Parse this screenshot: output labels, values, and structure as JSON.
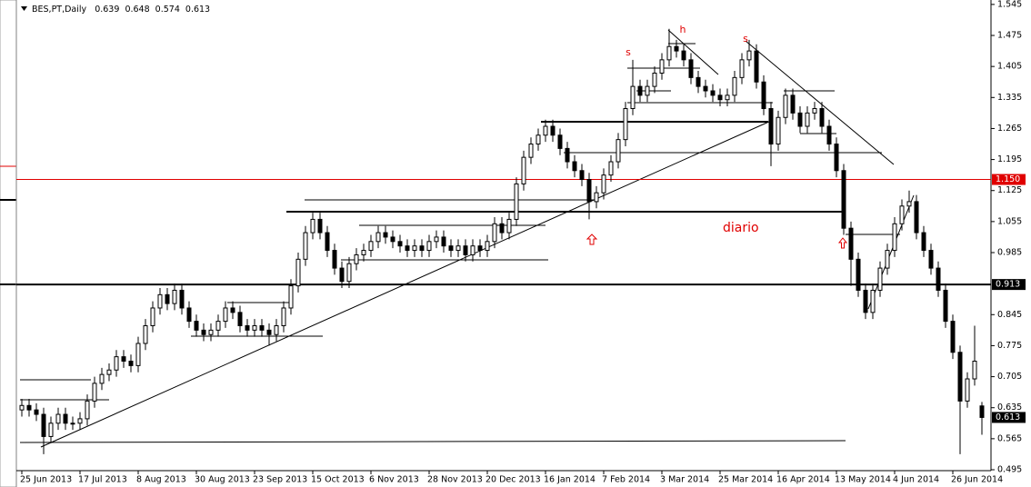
{
  "chart_data": {
    "type": "candlestick",
    "title": "BES,PT,Daily",
    "header_ohlc": [
      0.639,
      0.648,
      0.574,
      0.613
    ],
    "categories": [
      "25 Jun 2013",
      null,
      null,
      null,
      null,
      null,
      null,
      null,
      "17 Jul 2013",
      null,
      null,
      null,
      null,
      null,
      null,
      null,
      "8 Aug 2013",
      null,
      null,
      null,
      null,
      null,
      null,
      null,
      "30 Aug 2013",
      null,
      null,
      null,
      null,
      null,
      null,
      null,
      "23 Sep 2013",
      null,
      null,
      null,
      null,
      null,
      null,
      null,
      "15 Oct 2013",
      null,
      null,
      null,
      null,
      null,
      null,
      null,
      "6 Nov 2013",
      null,
      null,
      null,
      null,
      null,
      null,
      null,
      "28 Nov 2013",
      null,
      null,
      null,
      null,
      null,
      null,
      null,
      "20 Dec 2013",
      null,
      null,
      null,
      null,
      null,
      null,
      null,
      "16 Jan 2014",
      null,
      null,
      null,
      null,
      null,
      null,
      null,
      "7 Feb 2014",
      null,
      null,
      null,
      null,
      null,
      null,
      null,
      "3 Mar 2014",
      null,
      null,
      null,
      null,
      null,
      null,
      null,
      "25 Mar 2014",
      null,
      null,
      null,
      null,
      null,
      null,
      null,
      "16 Apr 2014",
      null,
      null,
      null,
      null,
      null,
      null,
      null,
      "13 May 2014",
      null,
      null,
      null,
      null,
      null,
      null,
      null,
      "4 Jun 2014",
      null,
      null,
      null,
      null,
      null,
      null,
      null,
      "26 Jun 2014",
      null,
      null,
      null,
      null
    ],
    "open": [
      0.63,
      0.64,
      0.63,
      0.62,
      0.57,
      0.6,
      0.62,
      0.6,
      0.6,
      0.61,
      0.65,
      0.69,
      0.71,
      0.72,
      0.75,
      0.74,
      0.73,
      0.78,
      0.82,
      0.86,
      0.89,
      0.87,
      0.9,
      0.86,
      0.83,
      0.81,
      0.8,
      0.81,
      0.83,
      0.86,
      0.85,
      0.82,
      0.81,
      0.82,
      0.81,
      0.8,
      0.82,
      0.86,
      0.91,
      0.97,
      1.03,
      1.06,
      1.03,
      0.99,
      0.95,
      0.92,
      0.96,
      0.98,
      0.99,
      1.01,
      1.03,
      1.02,
      1.01,
      1.0,
      0.99,
      1.0,
      0.99,
      1.01,
      1.02,
      1.0,
      0.99,
      1.0,
      0.98,
      1.0,
      0.99,
      1.01,
      1.05,
      1.03,
      1.06,
      1.14,
      1.2,
      1.23,
      1.25,
      1.27,
      1.25,
      1.22,
      1.19,
      1.17,
      1.15,
      1.1,
      1.12,
      1.16,
      1.19,
      1.24,
      1.31,
      1.36,
      1.34,
      1.36,
      1.39,
      1.42,
      1.45,
      1.44,
      1.42,
      1.38,
      1.36,
      1.35,
      1.34,
      1.33,
      1.34,
      1.38,
      1.42,
      1.44,
      1.37,
      1.31,
      1.23,
      1.29,
      1.34,
      1.3,
      1.27,
      1.3,
      1.31,
      1.27,
      1.23,
      1.17,
      1.04,
      0.97,
      0.9,
      0.85,
      0.9,
      0.95,
      0.99,
      1.05,
      1.09,
      1.1,
      1.03,
      0.99,
      0.95,
      0.9,
      0.83,
      0.76,
      0.65,
      0.7,
      0.639
    ],
    "high": [
      0.655,
      0.655,
      0.645,
      0.635,
      0.615,
      0.635,
      0.635,
      0.615,
      0.625,
      0.665,
      0.705,
      0.725,
      0.735,
      0.765,
      0.765,
      0.755,
      0.795,
      0.835,
      0.875,
      0.905,
      0.905,
      0.915,
      0.915,
      0.875,
      0.845,
      0.825,
      0.825,
      0.845,
      0.875,
      0.875,
      0.865,
      0.835,
      0.835,
      0.835,
      0.825,
      0.835,
      0.875,
      0.925,
      0.985,
      1.045,
      1.075,
      1.075,
      1.045,
      1.005,
      0.965,
      0.975,
      0.995,
      1.005,
      1.025,
      1.045,
      1.045,
      1.035,
      1.025,
      1.015,
      1.015,
      1.015,
      1.025,
      1.035,
      1.035,
      1.015,
      1.015,
      1.015,
      1.015,
      1.015,
      1.025,
      1.065,
      1.065,
      1.075,
      1.155,
      1.215,
      1.245,
      1.265,
      1.285,
      1.285,
      1.265,
      1.235,
      1.205,
      1.185,
      1.165,
      1.135,
      1.175,
      1.205,
      1.255,
      1.325,
      1.42,
      1.375,
      1.375,
      1.405,
      1.435,
      1.49,
      1.465,
      1.455,
      1.435,
      1.395,
      1.375,
      1.365,
      1.355,
      1.355,
      1.395,
      1.435,
      1.465,
      1.455,
      1.385,
      1.325,
      1.305,
      1.355,
      1.355,
      1.315,
      1.315,
      1.325,
      1.325,
      1.285,
      1.245,
      1.185,
      1.055,
      0.985,
      0.915,
      0.915,
      0.965,
      1.005,
      1.065,
      1.105,
      1.125,
      1.115,
      1.045,
      1.005,
      0.965,
      0.915,
      0.845,
      0.775,
      0.715,
      0.82,
      0.648
    ],
    "low": [
      0.615,
      0.615,
      0.605,
      0.53,
      0.555,
      0.585,
      0.585,
      0.585,
      0.585,
      0.595,
      0.635,
      0.675,
      0.695,
      0.705,
      0.725,
      0.715,
      0.715,
      0.765,
      0.805,
      0.845,
      0.855,
      0.855,
      0.845,
      0.815,
      0.795,
      0.785,
      0.785,
      0.795,
      0.815,
      0.835,
      0.805,
      0.795,
      0.795,
      0.795,
      0.775,
      0.785,
      0.805,
      0.845,
      0.895,
      0.955,
      1.015,
      1.015,
      0.975,
      0.935,
      0.905,
      0.905,
      0.945,
      0.965,
      0.975,
      0.995,
      1.005,
      0.995,
      0.985,
      0.975,
      0.975,
      0.975,
      0.975,
      0.995,
      0.985,
      0.975,
      0.975,
      0.965,
      0.965,
      0.975,
      0.975,
      0.995,
      1.015,
      1.015,
      1.045,
      1.125,
      1.185,
      1.215,
      1.235,
      1.235,
      1.205,
      1.175,
      1.155,
      1.135,
      1.06,
      1.085,
      1.105,
      1.145,
      1.175,
      1.225,
      1.295,
      1.325,
      1.325,
      1.345,
      1.375,
      1.405,
      1.425,
      1.405,
      1.365,
      1.345,
      1.335,
      1.325,
      1.315,
      1.315,
      1.325,
      1.365,
      1.405,
      1.355,
      1.295,
      1.18,
      1.215,
      1.275,
      1.285,
      1.255,
      1.255,
      1.285,
      1.255,
      1.215,
      1.155,
      1.025,
      0.91,
      0.885,
      0.835,
      0.835,
      0.885,
      0.935,
      0.975,
      1.035,
      1.075,
      1.015,
      0.975,
      0.935,
      0.885,
      0.815,
      0.745,
      0.53,
      0.635,
      0.685,
      0.574
    ],
    "close": [
      0.64,
      0.63,
      0.62,
      0.57,
      0.6,
      0.62,
      0.6,
      0.6,
      0.61,
      0.65,
      0.69,
      0.71,
      0.72,
      0.75,
      0.74,
      0.73,
      0.78,
      0.82,
      0.86,
      0.89,
      0.87,
      0.9,
      0.86,
      0.83,
      0.81,
      0.8,
      0.81,
      0.83,
      0.86,
      0.85,
      0.82,
      0.81,
      0.82,
      0.81,
      0.8,
      0.82,
      0.86,
      0.91,
      0.97,
      1.03,
      1.06,
      1.03,
      0.99,
      0.95,
      0.92,
      0.96,
      0.98,
      0.99,
      1.01,
      1.03,
      1.02,
      1.01,
      1.0,
      0.99,
      1.0,
      0.99,
      1.01,
      1.02,
      1.0,
      0.99,
      1.0,
      0.98,
      1.0,
      0.99,
      1.01,
      1.05,
      1.03,
      1.06,
      1.14,
      1.2,
      1.23,
      1.25,
      1.27,
      1.25,
      1.22,
      1.19,
      1.17,
      1.15,
      1.1,
      1.12,
      1.16,
      1.19,
      1.24,
      1.31,
      1.36,
      1.34,
      1.36,
      1.39,
      1.42,
      1.45,
      1.44,
      1.42,
      1.38,
      1.36,
      1.35,
      1.34,
      1.33,
      1.34,
      1.38,
      1.42,
      1.44,
      1.37,
      1.31,
      1.23,
      1.29,
      1.34,
      1.3,
      1.27,
      1.3,
      1.31,
      1.27,
      1.23,
      1.17,
      1.04,
      0.97,
      0.9,
      0.85,
      0.9,
      0.95,
      0.99,
      1.05,
      1.09,
      1.1,
      1.03,
      0.99,
      0.95,
      0.9,
      0.83,
      0.76,
      0.65,
      0.7,
      0.74,
      0.613
    ],
    "ylim": [
      0.495,
      1.555
    ],
    "yticks": [
      0.495,
      0.565,
      0.635,
      0.705,
      0.775,
      0.845,
      0.985,
      1.055,
      1.125,
      1.195,
      1.265,
      1.335,
      1.405,
      1.475,
      1.545
    ],
    "price_lines": [
      {
        "value": 1.15,
        "label": "1.150",
        "color": "#e00000"
      },
      {
        "value": 0.913,
        "color": "#000000"
      }
    ],
    "last_price": 0.613,
    "annotations": [
      "s",
      "h",
      "s",
      "diario"
    ]
  }
}
